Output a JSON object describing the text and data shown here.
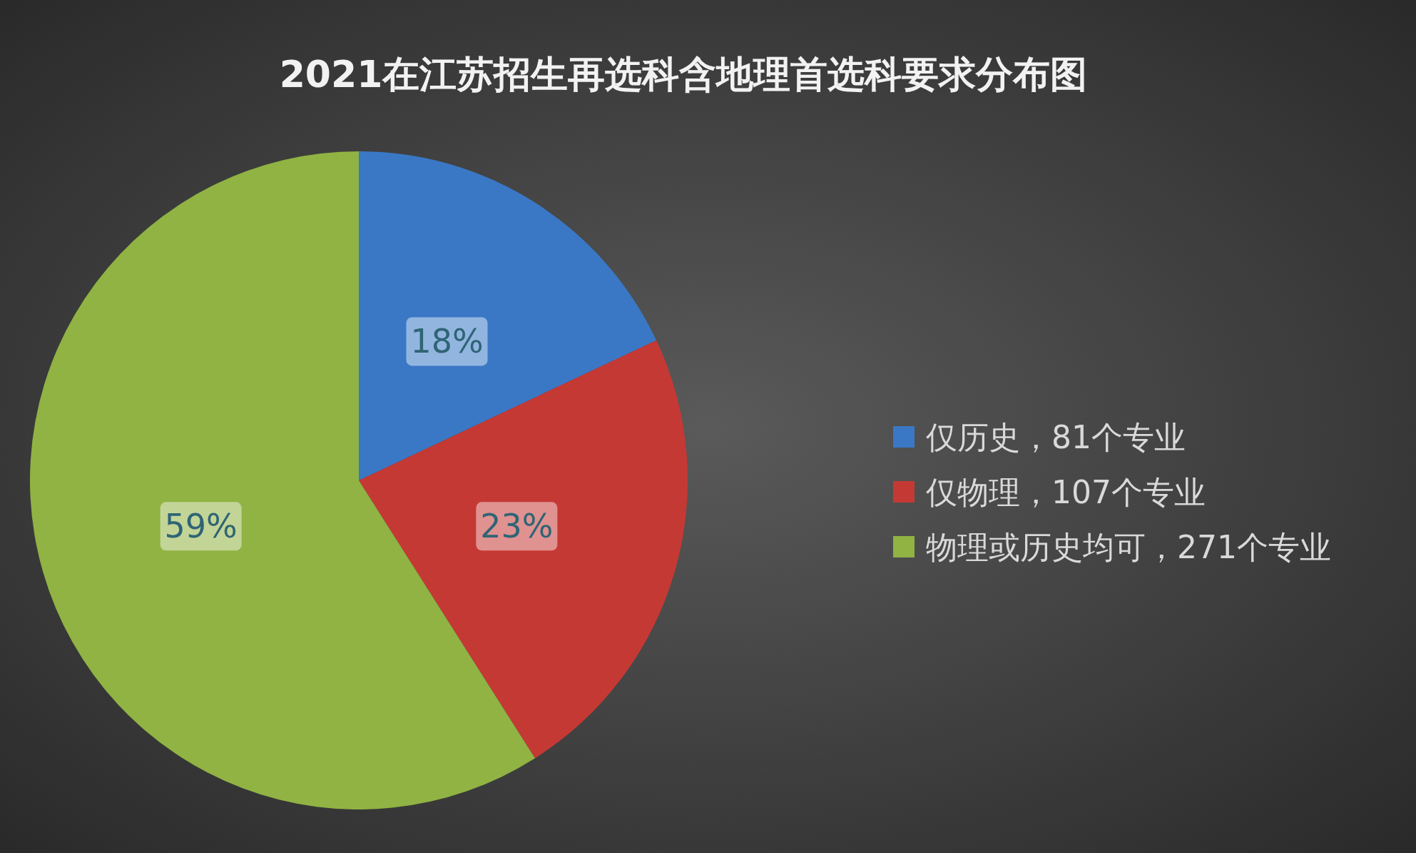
{
  "chart_data": {
    "type": "pie",
    "title": "2021在江苏招生再选科含地理首选科要求分布图",
    "categories": [
      "仅历史，81个专业",
      "仅物理，107个专业",
      "物理或历史均可，271个专业"
    ],
    "values": [
      18,
      23,
      59
    ],
    "colors": [
      "#3a78c6",
      "#c53935",
      "#90b343"
    ],
    "value_labels": [
      "18%",
      "23%",
      "59%"
    ],
    "legend": "right"
  }
}
